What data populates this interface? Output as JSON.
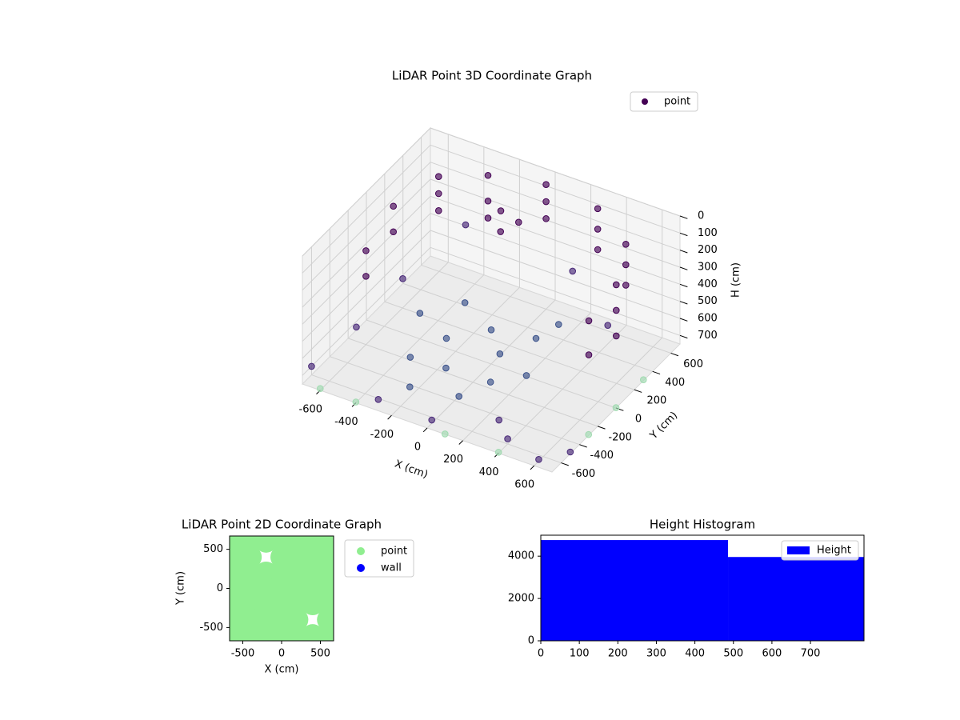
{
  "chart_data": [
    {
      "type": "scatter3d",
      "title": "LiDAR Point 3D Coordinate Graph",
      "xlabel": "X (cm)",
      "ylabel": "Y (cm)",
      "zlabel": "H (cm)",
      "xlim": [
        -700,
        700
      ],
      "ylim": [
        -700,
        700
      ],
      "zlim": [
        750,
        0
      ],
      "xticks": [
        -600,
        -400,
        -200,
        0,
        200,
        400,
        600
      ],
      "yticks": [
        -600,
        -400,
        -200,
        0,
        200,
        400,
        600
      ],
      "zticks": [
        0,
        100,
        200,
        300,
        400,
        500,
        600,
        700
      ],
      "grid": true,
      "legend": "upper right",
      "series": [
        {
          "name": "point",
          "color": "#440154",
          "x": [
            -500,
            -500,
            -500,
            -300,
            -300,
            -300,
            0,
            0,
            0,
            300,
            300,
            300,
            550,
            550,
            550,
            650,
            650,
            650,
            650,
            650,
            -600,
            -600,
            -600,
            -600,
            -100,
            0,
            -50,
            0,
            100,
            -200,
            200,
            -100,
            150,
            -300,
            300,
            -400,
            50,
            -200,
            250,
            -250,
            -700,
            -650,
            400,
            600,
            -300,
            500,
            -500,
            200,
            -400,
            700,
            0,
            300,
            -600,
            -400,
            400,
            700,
            700,
            700,
            100
          ],
          "y": [
            400,
            400,
            400,
            550,
            550,
            550,
            600,
            600,
            600,
            580,
            580,
            580,
            400,
            400,
            400,
            100,
            100,
            100,
            -200,
            -200,
            100,
            100,
            -200,
            -200,
            300,
            300,
            200,
            0,
            -100,
            -100,
            100,
            -300,
            -300,
            -300,
            -200,
            0,
            -450,
            -500,
            250,
            200,
            -600,
            300,
            -600,
            -650,
            -650,
            300,
            -500,
            500,
            500,
            -500,
            -650,
            -500,
            -700,
            -700,
            -700,
            -300,
            0,
            300,
            -700
          ],
          "z": [
            50,
            150,
            250,
            50,
            200,
            300,
            20,
            120,
            220,
            40,
            160,
            280,
            60,
            180,
            300,
            100,
            250,
            400,
            150,
            350,
            100,
            250,
            200,
            350,
            50,
            80,
            100,
            550,
            600,
            620,
            580,
            650,
            640,
            660,
            600,
            600,
            680,
            690,
            560,
            590,
            700,
            650,
            720,
            740,
            720,
            500,
            450,
            400,
            350,
            740,
            730,
            700,
            740,
            745,
            745,
            745,
            748,
            745,
            748
          ],
          "colors": [
            "#440154",
            "#440154",
            "#440154",
            "#440154",
            "#440154",
            "#440154",
            "#440154",
            "#440154",
            "#440154",
            "#440154",
            "#440154",
            "#440154",
            "#440154",
            "#440154",
            "#440154",
            "#440154",
            "#440154",
            "#440154",
            "#440154",
            "#440154",
            "#440154",
            "#440154",
            "#440154",
            "#440154",
            "#440154",
            "#440154",
            "#440154",
            "#3b528b",
            "#3b528b",
            "#3b528b",
            "#3b528b",
            "#3b528b",
            "#3b528b",
            "#3b528b",
            "#3b528b",
            "#3b528b",
            "#3b528b",
            "#3b528b",
            "#3b528b",
            "#3b528b",
            "#482878",
            "#482878",
            "#482878",
            "#482878",
            "#482878",
            "#482878",
            "#482878",
            "#482878",
            "#482878",
            "#482878",
            "#482878",
            "#482878",
            "#a0dab0",
            "#a0dab0",
            "#a0dab0",
            "#a0dab0",
            "#a0dab0",
            "#a0dab0",
            "#a0dab0"
          ]
        }
      ]
    },
    {
      "type": "scatter",
      "title": "LiDAR Point 2D Coordinate Graph",
      "xlabel": "X (cm)",
      "ylabel": "Y (cm)",
      "xlim": [
        -670,
        670
      ],
      "ylim": [
        -670,
        670
      ],
      "xticks": [
        -500,
        0,
        500
      ],
      "yticks": [
        -500,
        0,
        500
      ],
      "legend": "outside upper right",
      "series": [
        {
          "name": "point",
          "color": "#90ee90",
          "x": [
            -600,
            -400,
            -200,
            0,
            200,
            400,
            600,
            -600,
            -400,
            0,
            200,
            400,
            600,
            -600,
            -400,
            -200,
            0,
            200,
            400,
            600,
            -600,
            -400,
            -200,
            0,
            200,
            400,
            600,
            -600,
            -400,
            -200,
            0,
            200,
            400,
            600,
            -600,
            -400,
            -200,
            0,
            200,
            600,
            -600,
            -400,
            -200,
            0,
            200,
            400,
            600
          ],
          "y": [
            600,
            600,
            600,
            600,
            600,
            600,
            600,
            400,
            400,
            400,
            400,
            400,
            400,
            200,
            200,
            200,
            200,
            200,
            200,
            200,
            0,
            0,
            0,
            0,
            0,
            0,
            0,
            -200,
            -200,
            -200,
            -200,
            -200,
            -200,
            -200,
            -400,
            -400,
            -400,
            -400,
            -400,
            -400,
            -600,
            -600,
            -600,
            -600,
            -600,
            -600,
            -600
          ]
        },
        {
          "name": "wall",
          "color": "#0000ff",
          "x": [],
          "y": []
        }
      ]
    },
    {
      "type": "histogram",
      "title": "Height Histogram",
      "bins": [
        0,
        486,
        839
      ],
      "xlim": [
        0,
        839
      ],
      "ylim": [
        0,
        4990
      ],
      "xticks": [
        0,
        100,
        200,
        300,
        400,
        500,
        600,
        700
      ],
      "yticks": [
        0,
        2000,
        4000
      ],
      "legend": "upper right",
      "series": [
        {
          "name": "Height",
          "color": "#0000ff",
          "values": [
            4760,
            3960
          ]
        }
      ]
    }
  ]
}
